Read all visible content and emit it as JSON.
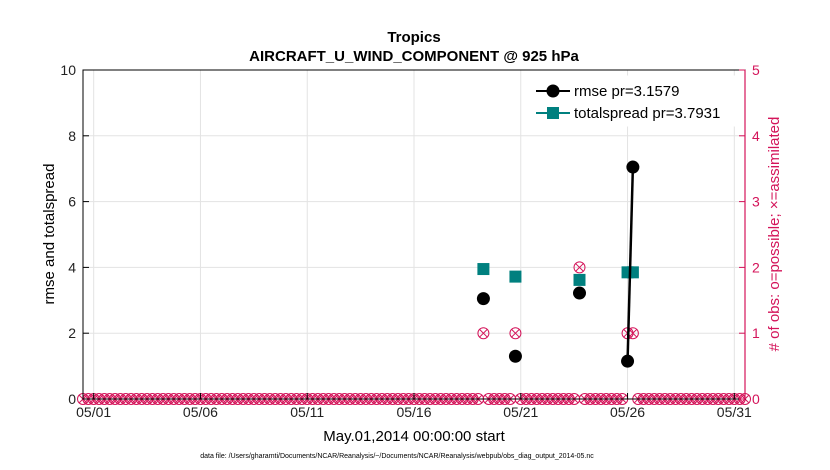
{
  "chart_data": {
    "type": "line",
    "title": "Tropics",
    "subtitle": "AIRCRAFT_U_WIND_COMPONENT @ 925 hPa",
    "xlabel": "May.01,2014 00:00:00 start",
    "ylabel": "rmse and totalspread",
    "ylabel_right": "# of obs: o=possible; ×=assimilated",
    "footnote": "data file: /Users/gharamti/Documents/NCAR/Reanalysis/~/Documents/NCAR/Reanalysis/webpub/obs_diag_output_2014-05.nc",
    "xlim": [
      0.5,
      31.5
    ],
    "ylim": [
      0,
      10
    ],
    "ylim_right": [
      0,
      5
    ],
    "x_ticks": [
      1,
      6,
      11,
      16,
      21,
      26,
      31
    ],
    "x_tick_labels": [
      "05/01",
      "05/06",
      "05/11",
      "05/16",
      "05/21",
      "05/26",
      "05/31"
    ],
    "y_ticks": [
      0,
      2,
      4,
      6,
      8,
      10
    ],
    "y_tick_labels": [
      "0",
      "2",
      "4",
      "6",
      "8",
      "10"
    ],
    "y_ticks_right": [
      0,
      1,
      2,
      3,
      4,
      5
    ],
    "y_tick_labels_right": [
      "0",
      "1",
      "2",
      "3",
      "4",
      "5"
    ],
    "grid": true,
    "legend_position": "top-right",
    "series": [
      {
        "name": "rmse",
        "legend": "rmse pr=3.1579",
        "color": "#000000",
        "marker": "circle",
        "axis": "left",
        "points": [
          [
            19.25,
            3.05
          ],
          [
            20.75,
            1.3
          ],
          [
            23.75,
            3.22
          ],
          [
            26.0,
            1.15
          ],
          [
            26.25,
            7.05
          ]
        ],
        "lines": [
          [
            3,
            4
          ]
        ]
      },
      {
        "name": "totalspread",
        "legend": "totalspread pr=3.7931",
        "color": "#00807f",
        "marker": "square",
        "axis": "left",
        "points": [
          [
            19.25,
            3.95
          ],
          [
            20.75,
            3.72
          ],
          [
            23.75,
            3.62
          ],
          [
            26.0,
            3.85
          ],
          [
            26.25,
            3.85
          ]
        ],
        "lines": [
          [
            3,
            4
          ]
        ]
      },
      {
        "name": "obs possible / assimilated",
        "color": "#d4145a",
        "marker": "circle-x",
        "axis": "right",
        "nonzero_points": [
          [
            19.25,
            1
          ],
          [
            20.75,
            1
          ],
          [
            23.75,
            2
          ],
          [
            26.0,
            1
          ],
          [
            26.25,
            1
          ]
        ],
        "zero_x_start": 0.5,
        "zero_x_end": 31.5,
        "zero_x_step": 0.25
      }
    ]
  }
}
